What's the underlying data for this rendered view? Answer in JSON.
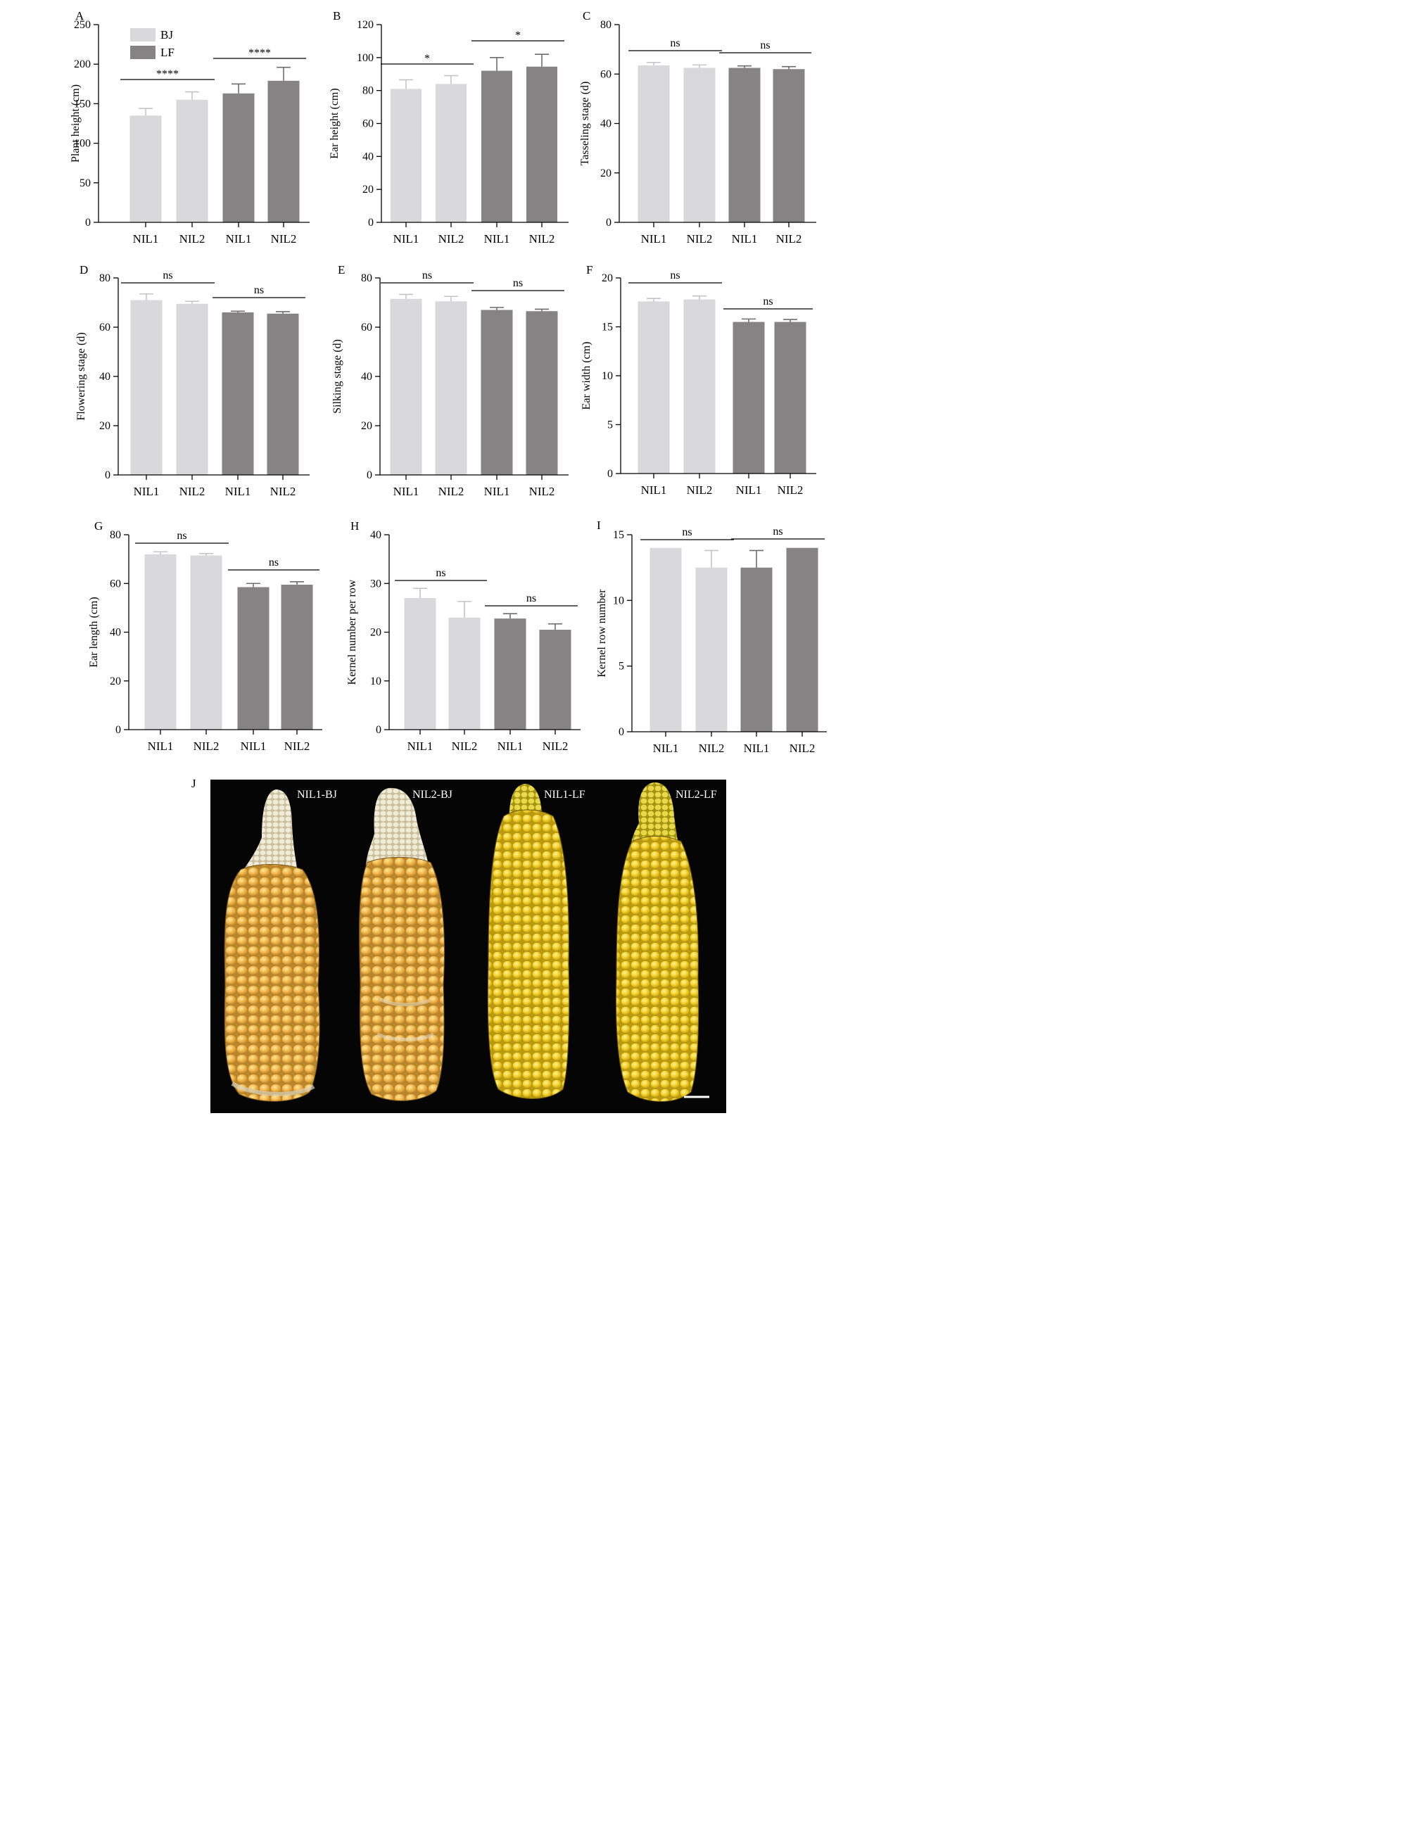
{
  "colors": {
    "BJ": "#d9d9db",
    "LF": "#868385",
    "background": "#ffffff"
  },
  "legend": {
    "entries": [
      {
        "label": "BJ",
        "color": "#d9d9db"
      },
      {
        "label": "LF",
        "color": "#868385"
      }
    ]
  },
  "chart_data": [
    {
      "panel": "A",
      "type": "bar",
      "ylabel": "Plant height (cm)",
      "ylim": [
        0,
        250
      ],
      "yticks": [
        0,
        50,
        100,
        150,
        200,
        250
      ],
      "categories": [
        "NIL1",
        "NIL2",
        "NIL1",
        "NIL2"
      ],
      "groups": [
        "BJ",
        "BJ",
        "LF",
        "LF"
      ],
      "values": [
        135,
        155,
        163,
        179
      ],
      "errors": [
        9,
        10,
        12,
        17
      ],
      "significance": [
        {
          "pair": [
            0,
            1
          ],
          "label": "****"
        },
        {
          "pair": [
            2,
            3
          ],
          "label": "****"
        }
      ]
    },
    {
      "panel": "B",
      "type": "bar",
      "ylabel": "Ear height (cm)",
      "ylim": [
        0,
        120
      ],
      "yticks": [
        0,
        20,
        40,
        60,
        80,
        100,
        120
      ],
      "categories": [
        "NIL1",
        "NIL2",
        "NIL1",
        "NIL2"
      ],
      "groups": [
        "BJ",
        "BJ",
        "LF",
        "LF"
      ],
      "values": [
        81,
        84,
        92,
        94.5
      ],
      "errors": [
        5.5,
        5,
        8,
        7.5
      ],
      "significance": [
        {
          "pair": [
            0,
            1
          ],
          "label": "*"
        },
        {
          "pair": [
            2,
            3
          ],
          "label": "*"
        }
      ]
    },
    {
      "panel": "C",
      "type": "bar",
      "ylabel": "Tasseling stage (d)",
      "ylim": [
        0,
        80
      ],
      "yticks": [
        0,
        20,
        40,
        60,
        80
      ],
      "categories": [
        "NIL1",
        "NIL2",
        "NIL1",
        "NIL2"
      ],
      "groups": [
        "BJ",
        "BJ",
        "LF",
        "LF"
      ],
      "values": [
        63.5,
        62.5,
        62.5,
        62
      ],
      "errors": [
        1.2,
        1.2,
        0.8,
        1
      ],
      "significance": [
        {
          "pair": [
            0,
            1
          ],
          "label": "ns"
        },
        {
          "pair": [
            2,
            3
          ],
          "label": "ns"
        }
      ]
    },
    {
      "panel": "D",
      "type": "bar",
      "ylabel": "Flowering stage (d)",
      "ylim": [
        0,
        80
      ],
      "yticks": [
        0,
        20,
        40,
        60,
        80
      ],
      "categories": [
        "NIL1",
        "NIL2",
        "NIL1",
        "NIL2"
      ],
      "groups": [
        "BJ",
        "BJ",
        "LF",
        "LF"
      ],
      "values": [
        71,
        69.5,
        66,
        65.5
      ],
      "errors": [
        2.5,
        1,
        0.5,
        0.8
      ],
      "significance": [
        {
          "pair": [
            0,
            1
          ],
          "label": "ns"
        },
        {
          "pair": [
            2,
            3
          ],
          "label": "ns"
        }
      ]
    },
    {
      "panel": "E",
      "type": "bar",
      "ylabel": "Silking stage (d)",
      "ylim": [
        0,
        80
      ],
      "yticks": [
        0,
        20,
        40,
        60,
        80
      ],
      "categories": [
        "NIL1",
        "NIL2",
        "NIL1",
        "NIL2"
      ],
      "groups": [
        "BJ",
        "BJ",
        "LF",
        "LF"
      ],
      "values": [
        71.5,
        70.5,
        67,
        66.5
      ],
      "errors": [
        1.8,
        2,
        1,
        0.8
      ],
      "significance": [
        {
          "pair": [
            0,
            1
          ],
          "label": "ns"
        },
        {
          "pair": [
            2,
            3
          ],
          "label": "ns"
        }
      ]
    },
    {
      "panel": "F",
      "type": "bar",
      "ylabel": "Ear width (cm)",
      "ylim": [
        0,
        20
      ],
      "yticks": [
        0,
        5,
        10,
        15,
        20
      ],
      "categories": [
        "NIL1",
        "NIL2",
        "NIL1",
        "NIL2"
      ],
      "groups": [
        "BJ",
        "BJ",
        "LF",
        "LF"
      ],
      "values": [
        17.6,
        17.8,
        15.5,
        15.5
      ],
      "errors": [
        0.3,
        0.35,
        0.3,
        0.25
      ],
      "significance": [
        {
          "pair": [
            0,
            1
          ],
          "label": "ns"
        },
        {
          "pair": [
            2,
            3
          ],
          "label": "ns"
        }
      ]
    },
    {
      "panel": "G",
      "type": "bar",
      "ylabel": "Ear length (cm)",
      "ylim": [
        0,
        80
      ],
      "yticks": [
        0,
        20,
        40,
        60,
        80
      ],
      "categories": [
        "NIL1",
        "NIL2",
        "NIL1",
        "NIL2"
      ],
      "groups": [
        "BJ",
        "BJ",
        "LF",
        "LF"
      ],
      "values": [
        72,
        71.5,
        58.5,
        59.5
      ],
      "errors": [
        1,
        0.8,
        1.5,
        1.2
      ],
      "significance": [
        {
          "pair": [
            0,
            1
          ],
          "label": "ns"
        },
        {
          "pair": [
            2,
            3
          ],
          "label": "ns"
        }
      ]
    },
    {
      "panel": "H",
      "type": "bar",
      "ylabel": "Kernel number per row",
      "ylim": [
        0,
        40
      ],
      "yticks": [
        0,
        10,
        20,
        30,
        40
      ],
      "categories": [
        "NIL1",
        "NIL2",
        "NIL1",
        "NIL2"
      ],
      "groups": [
        "BJ",
        "BJ",
        "LF",
        "LF"
      ],
      "values": [
        27,
        23,
        22.8,
        20.5
      ],
      "errors": [
        2,
        3.3,
        1,
        1.2
      ],
      "significance": [
        {
          "pair": [
            0,
            1
          ],
          "label": "ns"
        },
        {
          "pair": [
            2,
            3
          ],
          "label": "ns"
        }
      ]
    },
    {
      "panel": "I",
      "type": "bar",
      "ylabel": "Kernel row number",
      "ylim": [
        0,
        15
      ],
      "yticks": [
        0,
        5,
        10,
        15
      ],
      "categories": [
        "NIL1",
        "NIL2",
        "NIL1",
        "NIL2"
      ],
      "groups": [
        "BJ",
        "BJ",
        "LF",
        "LF"
      ],
      "values": [
        14,
        12.5,
        12.5,
        14
      ],
      "errors": [
        0,
        1.3,
        1.3,
        0
      ],
      "significance": [
        {
          "pair": [
            0,
            1
          ],
          "label": "ns"
        },
        {
          "pair": [
            2,
            3
          ],
          "label": "ns"
        }
      ]
    }
  ],
  "photo": {
    "panel": "J",
    "labels": [
      "NIL1-BJ",
      "NIL2-BJ",
      "NIL1-LF",
      "NIL2-LF"
    ]
  }
}
